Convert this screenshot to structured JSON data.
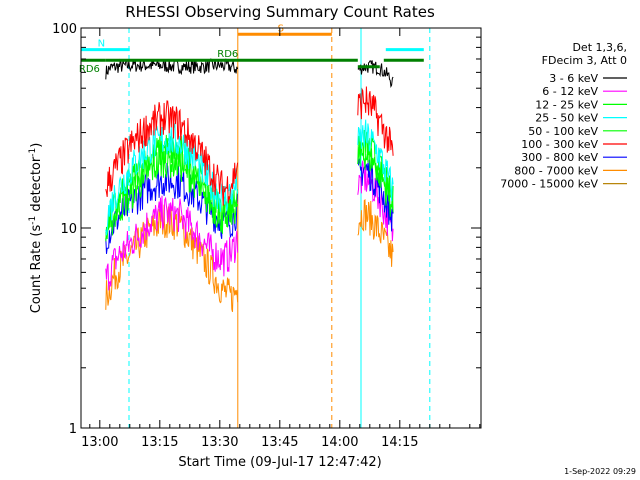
{
  "chart_data": {
    "type": "line",
    "title": "RHESSI Observing Summary Count Rates",
    "xlabel": "Start Time (09-Jul-17 12:47:42)",
    "ylabel_main": "Count Rate (s",
    "ylabel_sup1": "-1",
    "ylabel_mid": " detector",
    "ylabel_sup2": "-1",
    "ylabel_end": ")",
    "yscale": "log",
    "ylim": [
      1,
      100
    ],
    "xlim_minutes": [
      -4.7,
      95.3
    ],
    "x_unit": "minutes after 13:00",
    "x_ticks": [
      {
        "m": 0,
        "label": "13:00"
      },
      {
        "m": 15,
        "label": "13:15"
      },
      {
        "m": 30,
        "label": "13:30"
      },
      {
        "m": 45,
        "label": "13:45"
      },
      {
        "m": 60,
        "label": "14:00"
      },
      {
        "m": 75,
        "label": "14:15"
      }
    ],
    "y_ticks": [
      {
        "v": 1,
        "label": "1"
      },
      {
        "v": 10,
        "label": "10"
      },
      {
        "v": 100,
        "label": "100"
      }
    ],
    "legend_header": [
      "Det 1,3,6,",
      "FDecim 3, Att 0"
    ],
    "legend_position": "right",
    "segments": [
      [
        1.5,
        34.5
      ],
      [
        64.5,
        73.5
      ]
    ],
    "series": [
      {
        "name": "3 - 6 keV",
        "color": "#000000",
        "x": [
          1.5,
          2.5,
          4,
          8,
          15,
          20,
          25,
          30,
          33,
          34.5,
          64.5,
          66,
          68,
          70,
          72,
          73.5
        ],
        "y": [
          60,
          63,
          64,
          65,
          65,
          64,
          64,
          65,
          64,
          62,
          62,
          64,
          64,
          63,
          58,
          52
        ]
      },
      {
        "name": "6 - 12 keV",
        "color": "#ff00ff",
        "x": [
          1.5,
          4,
          8,
          12,
          16,
          20,
          24,
          28,
          31,
          33,
          34.5,
          64.5,
          66,
          68,
          70,
          72,
          73.5
        ],
        "y": [
          5.5,
          7,
          8.5,
          10.5,
          12,
          11.5,
          9.5,
          7.5,
          7,
          7.5,
          9,
          16,
          18,
          16.5,
          14,
          11,
          9
        ]
      },
      {
        "name": "12 - 25 keV",
        "color": "#00ff00",
        "x": [
          1.5,
          4,
          8,
          12,
          16,
          20,
          24,
          28,
          31,
          33,
          34.5,
          64.5,
          66,
          68,
          70,
          72,
          73.5
        ],
        "y": [
          10,
          13,
          17,
          22,
          25,
          24,
          19,
          14,
          12,
          13,
          15,
          23,
          26,
          24,
          20,
          16,
          13
        ]
      },
      {
        "name": "25 - 50 keV",
        "color": "#00ffff",
        "x": [
          1.5,
          4,
          8,
          12,
          16,
          20,
          24,
          28,
          31,
          33,
          34.5,
          64.5,
          66,
          68,
          70,
          72,
          73.5
        ],
        "y": [
          11,
          15,
          20,
          25,
          28,
          27,
          22,
          16,
          14,
          15,
          17,
          26,
          29,
          27,
          23,
          18,
          15
        ]
      },
      {
        "name": "50 - 100 keV",
        "color": "#00ff00",
        "x": [
          1.5,
          4,
          8,
          12,
          16,
          20,
          24,
          28,
          31,
          33,
          34.5,
          64.5,
          66,
          68,
          70,
          72,
          73.5
        ],
        "y": [
          9.5,
          12,
          15,
          19,
          22,
          21,
          17,
          13,
          11,
          12,
          13.5,
          22,
          24,
          22,
          19,
          15,
          12
        ]
      },
      {
        "name": "100 - 300 keV",
        "color": "#ff0000",
        "x": [
          1.5,
          4,
          8,
          12,
          16,
          20,
          24,
          28,
          31,
          33,
          34.5,
          64.5,
          66,
          68,
          70,
          72,
          73.5
        ],
        "y": [
          16,
          20,
          26,
          32,
          36,
          33,
          26,
          19,
          15.5,
          17,
          21,
          40,
          44,
          40,
          34,
          28,
          22
        ]
      },
      {
        "name": "300 - 800 keV",
        "color": "#0000ff",
        "x": [
          1.5,
          4,
          8,
          12,
          16,
          20,
          24,
          28,
          31,
          33,
          34.5,
          64.5,
          66,
          68,
          70,
          72,
          73.5
        ],
        "y": [
          9,
          11,
          13.5,
          16,
          17.5,
          17,
          14.5,
          12,
          10.5,
          11,
          12.5,
          18,
          20,
          18.5,
          16,
          13,
          11
        ]
      },
      {
        "name": "800 - 7000 keV",
        "color": "#ff8c00",
        "x": [
          1.5,
          4,
          8,
          12,
          16,
          20,
          24,
          28,
          31,
          33,
          34.5,
          64.5,
          66,
          68,
          70,
          72,
          73.5
        ],
        "y": [
          4.5,
          6,
          7.5,
          9.5,
          11,
          10.5,
          8,
          6,
          4.8,
          4.5,
          5,
          11,
          12,
          11,
          9.5,
          8,
          7
        ]
      },
      {
        "name": "7000 - 15000 keV",
        "color": "#b8860b",
        "x": [],
        "y": []
      }
    ],
    "annotations": [
      {
        "label": "N",
        "color": "#00ffff",
        "x_range": [
          -4.7,
          7.5
        ],
        "y": 78
      },
      {
        "label": "",
        "color": "#00ffff",
        "x_range": [
          71.5,
          81
        ],
        "y": 78
      },
      {
        "label": "S",
        "color": "#ff8c00",
        "x_range": [
          34.5,
          58
        ],
        "y": 93
      },
      {
        "label": "RD6",
        "color": "#008000",
        "x_range": [
          -4.7,
          1.5
        ],
        "y": 69
      },
      {
        "label": "RD6",
        "color": "#008000",
        "x_range": [
          1.5,
          64.5
        ],
        "y": 69
      },
      {
        "label": "",
        "color": "#008000",
        "x_range": [
          64.5,
          70
        ],
        "y": 64
      },
      {
        "label": "",
        "color": "#008000",
        "x_range": [
          71,
          81
        ],
        "y": 69
      }
    ],
    "vertical_markers": [
      {
        "m": -4.7,
        "color": "#00ffff",
        "style": "solid"
      },
      {
        "m": 7.3,
        "color": "#00ffff",
        "style": "dashed"
      },
      {
        "m": 34.5,
        "color": "#ff8c00",
        "style": "solid"
      },
      {
        "m": 58,
        "color": "#ff8c00",
        "style": "dashed"
      },
      {
        "m": 65.3,
        "color": "#00ffff",
        "style": "solid"
      },
      {
        "m": 82.5,
        "color": "#00ffff",
        "style": "dashed"
      }
    ]
  },
  "footer_timestamp": "1-Sep-2022 09:29"
}
